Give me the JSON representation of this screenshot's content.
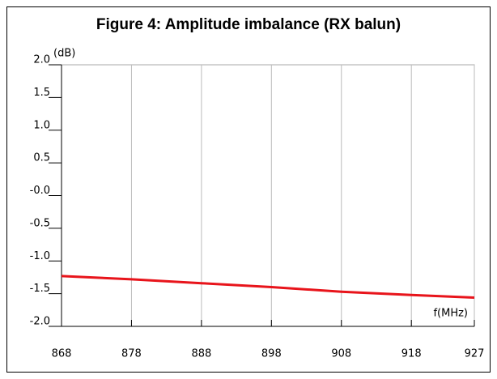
{
  "chart_data": {
    "type": "line",
    "title": "Figure 4: Amplitude imbalance (RX balun)",
    "y_label": "(dB)",
    "x_label": "f(MHz)",
    "x": [
      868,
      878,
      888,
      898,
      908,
      918,
      927
    ],
    "series": [
      {
        "name": "Amplitude imbalance",
        "color": "#e8141b",
        "values": [
          -1.23,
          -1.28,
          -1.34,
          -1.4,
          -1.47,
          -1.52,
          -1.56
        ]
      }
    ],
    "xlim": [
      868,
      927
    ],
    "xticks": [
      868,
      878,
      888,
      898,
      908,
      918,
      927
    ],
    "ylim": [
      -2,
      2
    ],
    "yticks": [
      {
        "value": 2,
        "label": "2.0"
      },
      1.5,
      {
        "value": 1,
        "label": "1.0"
      },
      0.5,
      {
        "value": 0,
        "label": "-0.0"
      },
      -0.5,
      {
        "value": -1,
        "label": "-1.0"
      },
      -1.5,
      {
        "value": -2,
        "label": "-2.0"
      }
    ],
    "grid": true
  }
}
